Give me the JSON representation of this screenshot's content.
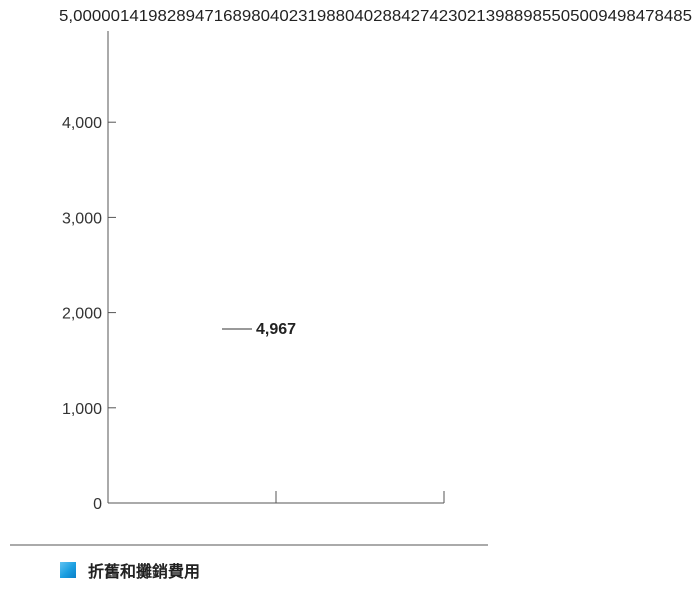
{
  "chart_data": {
    "type": "bar",
    "categories": [
      ""
    ],
    "series": [
      {
        "name": "折舊和攤銷費用",
        "values": [
          4967
        ],
        "color": "#1a9ee0"
      }
    ],
    "data_labels": [
      "4,967"
    ],
    "y_ticks": [
      "0",
      "1,000",
      "2,000",
      "3,000",
      "4,000"
    ],
    "ylim": [
      0,
      5000
    ],
    "top_axis_label": "5,000001419828947168980402319880402884274230213988985505009498478485",
    "grid": false,
    "legend_position": "bottom-left",
    "title": "",
    "xlabel": "",
    "ylabel": ""
  }
}
